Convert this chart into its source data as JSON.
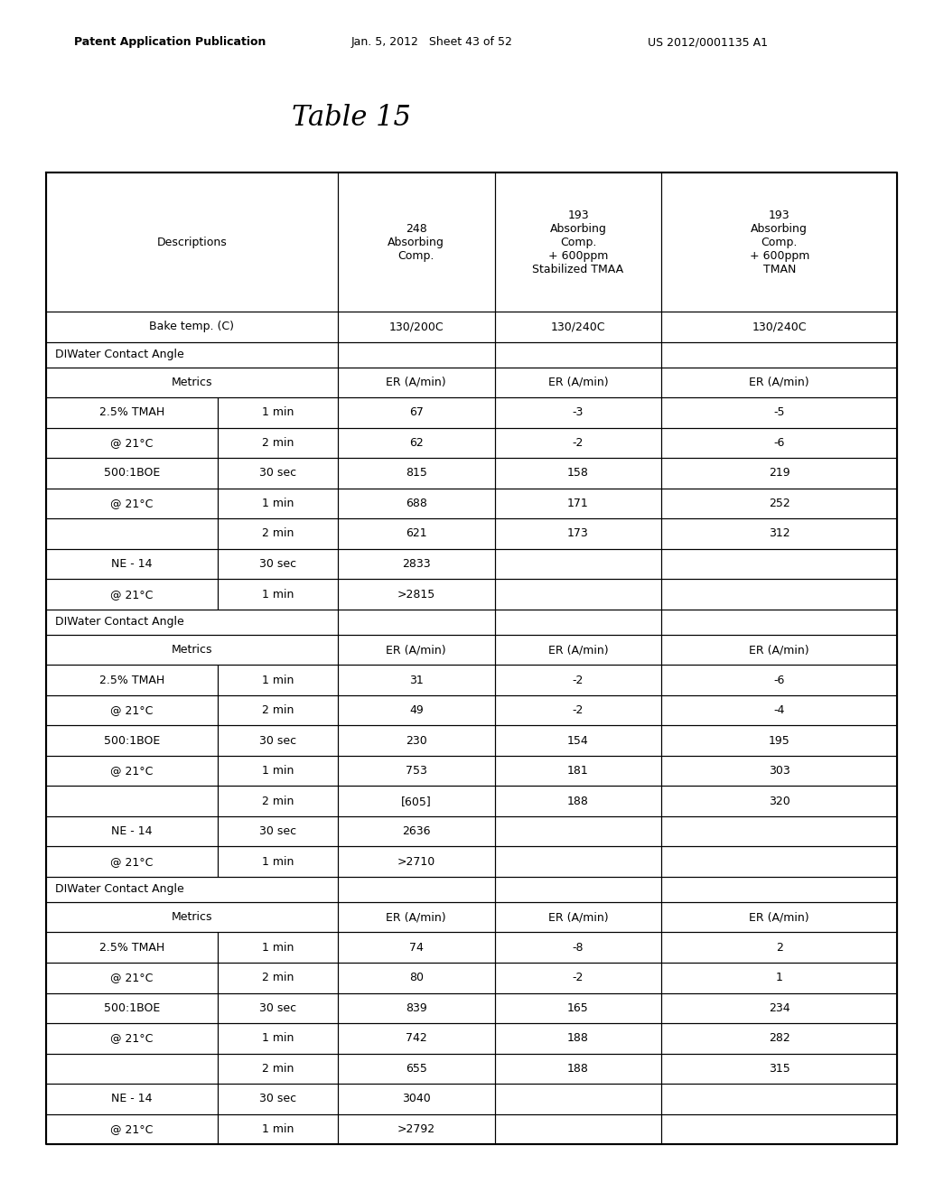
{
  "title": "Table 15",
  "header_row": [
    "Descriptions",
    "",
    "248\nAbsorbing\nComp.",
    "193\nAbsorbing\nComp.\n+ 600ppm\nStabilized TMAA",
    "193\nAbsorbing\nComp.\n+ 600ppm\nTMAN"
  ],
  "bake_row": [
    "Bake temp. (C)",
    "",
    "130/200C",
    "130/240C",
    "130/240C"
  ],
  "sections": [
    {
      "section_header": "DIWater Contact Angle",
      "metrics_row": [
        "Metrics",
        "",
        "ER (A/min)",
        "ER (A/min)",
        "ER (A/min)"
      ],
      "rows": [
        [
          "2.5% TMAH",
          "1 min",
          "67",
          "-3",
          "-5"
        ],
        [
          "@ 21°C",
          "2 min",
          "62",
          "-2",
          "-6"
        ],
        [
          "500:1BOE",
          "30 sec",
          "815",
          "158",
          "219"
        ],
        [
          "@ 21°C",
          "1 min",
          "688",
          "171",
          "252"
        ],
        [
          "",
          "2 min",
          "621",
          "173",
          "312"
        ],
        [
          "NE - 14",
          "30 sec",
          "2833",
          "",
          ""
        ],
        [
          "@ 21°C",
          "1 min",
          ">2815",
          "",
          ""
        ]
      ]
    },
    {
      "section_header": "DIWater Contact Angle",
      "metrics_row": [
        "Metrics",
        "",
        "ER (A/min)",
        "ER (A/min)",
        "ER (A/min)"
      ],
      "rows": [
        [
          "2.5% TMAH",
          "1 min",
          "31",
          "-2",
          "-6"
        ],
        [
          "@ 21°C",
          "2 min",
          "49",
          "-2",
          "-4"
        ],
        [
          "500:1BOE",
          "30 sec",
          "230",
          "154",
          "195"
        ],
        [
          "@ 21°C",
          "1 min",
          "753",
          "181",
          "303"
        ],
        [
          "",
          "2 min",
          "[605]",
          "188",
          "320"
        ],
        [
          "NE - 14",
          "30 sec",
          "2636",
          "",
          ""
        ],
        [
          "@ 21°C",
          "1 min",
          ">2710",
          "",
          ""
        ]
      ]
    },
    {
      "section_header": "DIWater Contact Angle",
      "metrics_row": [
        "Metrics",
        "",
        "ER (A/min)",
        "ER (A/min)",
        "ER (A/min)"
      ],
      "rows": [
        [
          "2.5% TMAH",
          "1 min",
          "74",
          "-8",
          "2"
        ],
        [
          "@ 21°C",
          "2 min",
          "80",
          "-2",
          "1"
        ],
        [
          "500:1BOE",
          "30 sec",
          "839",
          "165",
          "234"
        ],
        [
          "@ 21°C",
          "1 min",
          "742",
          "188",
          "282"
        ],
        [
          "",
          "2 min",
          "655",
          "188",
          "315"
        ],
        [
          "NE - 14",
          "30 sec",
          "3040",
          "",
          ""
        ],
        [
          "@ 21°C",
          "1 min",
          ">2792",
          "",
          ""
        ]
      ]
    }
  ],
  "bg_color": "#ffffff",
  "text_color": "#000000",
  "header_bg": "#ffffff",
  "font_size": 9,
  "title_font_size": 22
}
